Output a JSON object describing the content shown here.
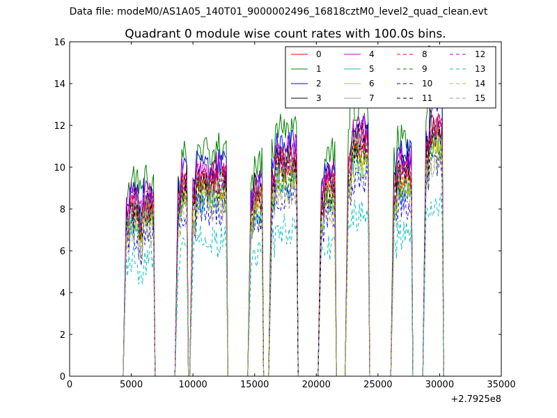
{
  "figure": {
    "suptitle": "Data file: modeM0/AS1A05_140T01_9000002496_16818cztM0_level2_quad_clean.evt"
  },
  "chart_data": {
    "type": "line",
    "title": "Quadrant 0 module wise count rates with 100.0s bins.",
    "xlabel": "",
    "ylabel": "",
    "xlim": [
      0,
      35000
    ],
    "ylim": [
      0,
      16
    ],
    "x_ticks": [
      0,
      5000,
      10000,
      15000,
      20000,
      25000,
      30000,
      35000
    ],
    "y_ticks": [
      0,
      2,
      4,
      6,
      8,
      10,
      12,
      14,
      16
    ],
    "x_offset_label": "+2.7925e8",
    "grid": false,
    "legend": {
      "placement": "top-right",
      "columns": 4
    },
    "segments": [
      {
        "start": 4600,
        "end": 6800,
        "base": 8.0
      },
      {
        "start": 8800,
        "end": 9500,
        "base": 9.0
      },
      {
        "start": 10000,
        "end": 12700,
        "base": 9.2
      },
      {
        "start": 14700,
        "end": 15600,
        "base": 8.6
      },
      {
        "start": 16400,
        "end": 18400,
        "base": 10.0
      },
      {
        "start": 20400,
        "end": 21500,
        "base": 9.0
      },
      {
        "start": 22600,
        "end": 24200,
        "base": 11.0
      },
      {
        "start": 26300,
        "end": 27700,
        "base": 9.6
      },
      {
        "start": 28900,
        "end": 30200,
        "base": 11.6
      }
    ],
    "series": [
      {
        "name": "0",
        "color": "#ff0000",
        "dash": "solid",
        "level": 1.0
      },
      {
        "name": "1",
        "color": "#008000",
        "dash": "solid",
        "level": 1.18
      },
      {
        "name": "2",
        "color": "#0000ff",
        "dash": "solid",
        "level": 1.1
      },
      {
        "name": "3",
        "color": "#000000",
        "dash": "solid",
        "level": 1.04
      },
      {
        "name": "4",
        "color": "#bf00bf",
        "dash": "solid",
        "level": 1.08
      },
      {
        "name": "5",
        "color": "#00bfbf",
        "dash": "solid",
        "level": 0.93
      },
      {
        "name": "6",
        "color": "#bfbf00",
        "dash": "solid",
        "level": 0.97
      },
      {
        "name": "7",
        "color": "#999999",
        "dash": "solid",
        "level": 1.0
      },
      {
        "name": "8",
        "color": "#ff0000",
        "dash": "dashed",
        "level": 1.02
      },
      {
        "name": "9",
        "color": "#008000",
        "dash": "dashed",
        "level": 0.95
      },
      {
        "name": "10",
        "color": "#0000ff",
        "dash": "dashed",
        "level": 0.86
      },
      {
        "name": "11",
        "color": "#000000",
        "dash": "dashed",
        "level": 0.98
      },
      {
        "name": "12",
        "color": "#bf00bf",
        "dash": "dashed",
        "level": 1.03
      },
      {
        "name": "13",
        "color": "#00bfbf",
        "dash": "dashed",
        "level": 0.7
      },
      {
        "name": "14",
        "color": "#bfbf00",
        "dash": "dashed",
        "level": 0.9
      },
      {
        "name": "15",
        "color": "#999999",
        "dash": "dashed",
        "level": 0.88
      }
    ]
  }
}
